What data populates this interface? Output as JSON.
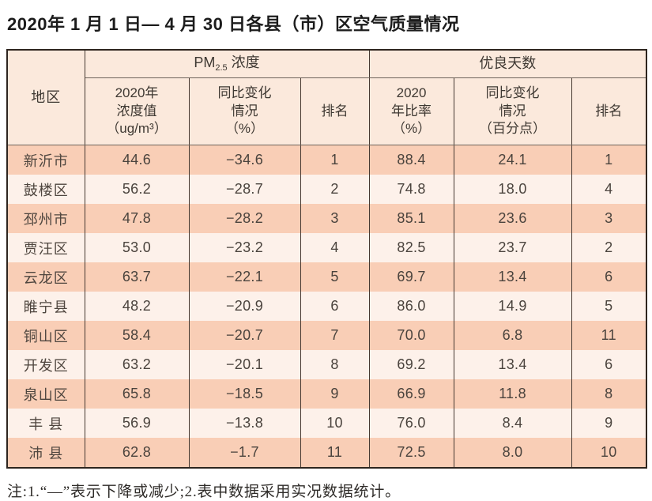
{
  "page": {
    "title": "2020年 1 月 1 日— 4 月 30 日各县（市）区空气质量情况"
  },
  "table": {
    "header": {
      "region": "地区",
      "pm25_group": {
        "prefix": "PM",
        "sub": "2.5",
        "suffix": " 浓度"
      },
      "good_days_group": "优良天数",
      "cols": {
        "pm25_value": "2020年\n浓度值\n（ug/m³）",
        "pm25_change": "同比变化\n情况\n（%）",
        "pm25_rank": "排名",
        "good_ratio": "2020\n年比率\n（%）",
        "good_change": "同比变化\n情况\n（百分点）",
        "good_rank": "排名"
      }
    },
    "rows": [
      {
        "region": "新沂市",
        "pm25_value": "44.6",
        "pm25_change": "−34.6",
        "pm25_rank": "1",
        "good_ratio": "88.4",
        "good_change": "24.1",
        "good_rank": "1"
      },
      {
        "region": "鼓楼区",
        "pm25_value": "56.2",
        "pm25_change": "−28.7",
        "pm25_rank": "2",
        "good_ratio": "74.8",
        "good_change": "18.0",
        "good_rank": "4"
      },
      {
        "region": "邳州市",
        "pm25_value": "47.8",
        "pm25_change": "−28.2",
        "pm25_rank": "3",
        "good_ratio": "85.1",
        "good_change": "23.6",
        "good_rank": "3"
      },
      {
        "region": "贾汪区",
        "pm25_value": "53.0",
        "pm25_change": "−23.2",
        "pm25_rank": "4",
        "good_ratio": "82.5",
        "good_change": "23.7",
        "good_rank": "2"
      },
      {
        "region": "云龙区",
        "pm25_value": "63.7",
        "pm25_change": "−22.1",
        "pm25_rank": "5",
        "good_ratio": "69.7",
        "good_change": "13.4",
        "good_rank": "6"
      },
      {
        "region": "睢宁县",
        "pm25_value": "48.2",
        "pm25_change": "−20.9",
        "pm25_rank": "6",
        "good_ratio": "86.0",
        "good_change": "14.9",
        "good_rank": "5"
      },
      {
        "region": "铜山区",
        "pm25_value": "58.4",
        "pm25_change": "−20.7",
        "pm25_rank": "7",
        "good_ratio": "70.0",
        "good_change": "6.8",
        "good_rank": "11"
      },
      {
        "region": "开发区",
        "pm25_value": "63.2",
        "pm25_change": "−20.1",
        "pm25_rank": "8",
        "good_ratio": "69.2",
        "good_change": "13.4",
        "good_rank": "6"
      },
      {
        "region": "泉山区",
        "pm25_value": "65.8",
        "pm25_change": "−18.5",
        "pm25_rank": "9",
        "good_ratio": "66.9",
        "good_change": "11.8",
        "good_rank": "8"
      },
      {
        "region": "丰 县",
        "pm25_value": "56.9",
        "pm25_change": "−13.8",
        "pm25_rank": "10",
        "good_ratio": "76.0",
        "good_change": "8.4",
        "good_rank": "9"
      },
      {
        "region": "沛 县",
        "pm25_value": "62.8",
        "pm25_change": "−1.7",
        "pm25_rank": "11",
        "good_ratio": "72.5",
        "good_change": "8.0",
        "good_rank": "10"
      }
    ]
  },
  "note": "注:1.“—”表示下降或减少;2.表中数据采用实况数据统计。",
  "colors": {
    "header_bg": "#fbe9dc",
    "row_dark": "#f9ceb6",
    "row_light": "#fdf1ea",
    "grid": "#463931",
    "outer": "#2e251f",
    "text": "#4a433d",
    "title_color": "#1c1c1c",
    "note_color": "#2e2b28"
  }
}
